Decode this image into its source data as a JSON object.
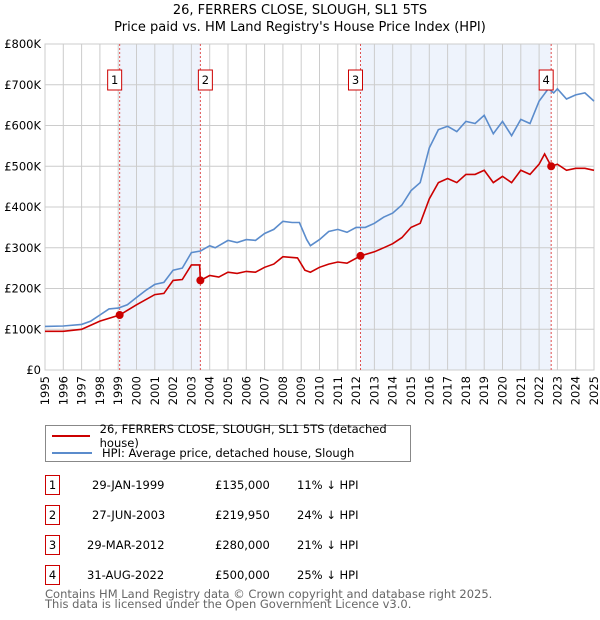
{
  "title_line1": "26, FERRERS CLOSE, SLOUGH, SL1 5TS",
  "title_line2": "Price paid vs. HM Land Registry's House Price Index (HPI)",
  "colors": {
    "property": "#cc0000",
    "hpi": "#5b8ccc",
    "shade": "#eef3fc"
  },
  "chart_data": {
    "type": "line",
    "title": "Price paid vs. HM Land Registry's House Price Index (HPI)",
    "xlim": [
      1995,
      2025
    ],
    "ylim": [
      0,
      800000
    ],
    "grid": true,
    "x_ticks": [
      "1995",
      "1996",
      "1997",
      "1998",
      "1999",
      "2000",
      "2001",
      "2002",
      "2003",
      "2004",
      "2005",
      "2006",
      "2007",
      "2008",
      "2009",
      "2010",
      "2011",
      "2012",
      "2013",
      "2014",
      "2015",
      "2016",
      "2017",
      "2018",
      "2019",
      "2020",
      "2021",
      "2022",
      "2023",
      "2024",
      "2025"
    ],
    "y_ticks": [
      {
        "v": 0,
        "label": "£0"
      },
      {
        "v": 100000,
        "label": "£100K"
      },
      {
        "v": 200000,
        "label": "£200K"
      },
      {
        "v": 300000,
        "label": "£300K"
      },
      {
        "v": 400000,
        "label": "£400K"
      },
      {
        "v": 500000,
        "label": "£500K"
      },
      {
        "v": 600000,
        "label": "£600K"
      },
      {
        "v": 700000,
        "label": "£700K"
      },
      {
        "v": 800000,
        "label": "£800K"
      }
    ],
    "series": [
      {
        "name": "26, FERRERS CLOSE, SLOUGH, SL1 5TS (detached house)",
        "color": "#cc0000",
        "x": [
          1995,
          1996,
          1997,
          1998,
          1999.08,
          2000,
          2001,
          2001.5,
          2002,
          2002.5,
          2003,
          2003.45,
          2003.49,
          2004,
          2004.5,
          2005,
          2005.5,
          2006,
          2006.5,
          2007,
          2007.5,
          2008,
          2008.8,
          2009.2,
          2009.5,
          2010,
          2010.5,
          2011,
          2011.5,
          2012.24,
          2013,
          2013.5,
          2014,
          2014.5,
          2015,
          2015.5,
          2016,
          2016.5,
          2017,
          2017.5,
          2018,
          2018.5,
          2019,
          2019.5,
          2020,
          2020.5,
          2021,
          2021.5,
          2022,
          2022.3,
          2022.66,
          2023,
          2023.5,
          2024,
          2024.5,
          2025
        ],
        "y": [
          95000,
          95000,
          100000,
          120000,
          135000,
          160000,
          185000,
          188000,
          220000,
          222000,
          258000,
          258000,
          219950,
          232000,
          228000,
          240000,
          237000,
          242000,
          240000,
          252000,
          260000,
          278000,
          275000,
          245000,
          240000,
          252000,
          260000,
          265000,
          262000,
          280000,
          290000,
          300000,
          310000,
          325000,
          350000,
          360000,
          420000,
          460000,
          470000,
          460000,
          480000,
          480000,
          490000,
          460000,
          475000,
          460000,
          490000,
          480000,
          505000,
          530000,
          500000,
          505000,
          490000,
          495000,
          495000,
          490000
        ]
      },
      {
        "name": "HPI: Average price, detached house, Slough",
        "color": "#5b8ccc",
        "x": [
          1995,
          1996,
          1997,
          1997.5,
          1998,
          1998.5,
          1999,
          1999.5,
          2000,
          2000.5,
          2001,
          2001.5,
          2002,
          2002.5,
          2003,
          2003.5,
          2004,
          2004.3,
          2005,
          2005.5,
          2006,
          2006.5,
          2007,
          2007.5,
          2008,
          2008.5,
          2008.9,
          2009.3,
          2009.5,
          2010,
          2010.5,
          2011,
          2011.5,
          2012,
          2012.5,
          2013,
          2013.5,
          2014,
          2014.5,
          2015,
          2015.5,
          2016,
          2016.5,
          2017,
          2017.5,
          2018,
          2018.5,
          2019,
          2019.5,
          2020,
          2020.5,
          2021,
          2021.5,
          2022,
          2022.5,
          2022.8,
          2023,
          2023.5,
          2024,
          2024.5,
          2025
        ],
        "y": [
          107000,
          108000,
          112000,
          120000,
          135000,
          150000,
          152000,
          160000,
          178000,
          195000,
          210000,
          215000,
          245000,
          250000,
          288000,
          292000,
          305000,
          300000,
          318000,
          313000,
          320000,
          318000,
          335000,
          345000,
          365000,
          362000,
          362000,
          320000,
          305000,
          320000,
          340000,
          345000,
          338000,
          350000,
          350000,
          360000,
          375000,
          385000,
          405000,
          440000,
          460000,
          545000,
          590000,
          598000,
          585000,
          610000,
          605000,
          625000,
          580000,
          610000,
          575000,
          615000,
          605000,
          660000,
          690000,
          680000,
          690000,
          665000,
          675000,
          680000,
          660000
        ]
      }
    ],
    "sales": [
      {
        "n": "1",
        "x": 1999.08,
        "date": "29-JAN-1999",
        "price": 135000,
        "price_label": "£135,000",
        "hpi": "11% ↓ HPI"
      },
      {
        "n": "2",
        "x": 2003.49,
        "date": "27-JUN-2003",
        "price": 219950,
        "price_label": "£219,950",
        "hpi": "24% ↓ HPI"
      },
      {
        "n": "3",
        "x": 2012.24,
        "date": "29-MAR-2012",
        "price": 280000,
        "price_label": "£280,000",
        "hpi": "21% ↓ HPI"
      },
      {
        "n": "4",
        "x": 2022.66,
        "date": "31-AUG-2022",
        "price": 500000,
        "price_label": "£500,000",
        "hpi": "25% ↓ HPI"
      }
    ]
  },
  "legend": {
    "property": "26, FERRERS CLOSE, SLOUGH, SL1 5TS (detached house)",
    "hpi": "HPI: Average price, detached house, Slough"
  },
  "footer": {
    "line1": "Contains HM Land Registry data © Crown copyright and database right 2025.",
    "line2": "This data is licensed under the Open Government Licence v3.0."
  }
}
